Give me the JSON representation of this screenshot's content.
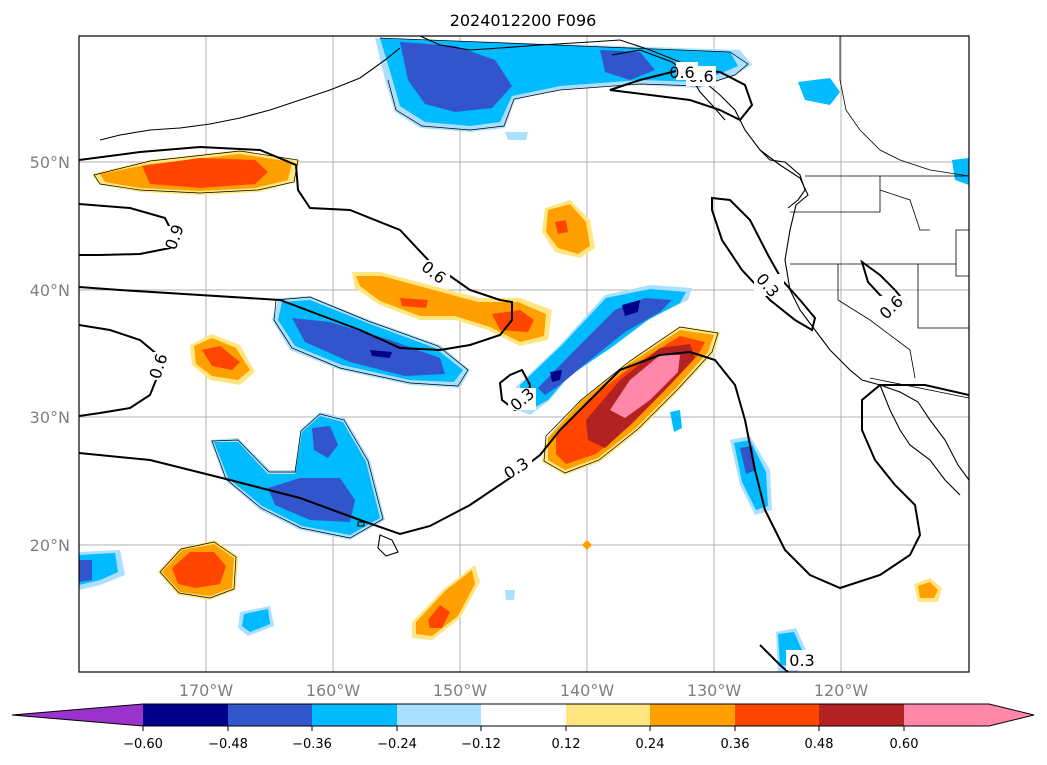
{
  "title": "2024012200 F096",
  "colors": {
    "neg": [
      "#9933cc",
      "#00008b",
      "#3355cc",
      "#00bbff",
      "#aadfff"
    ],
    "zero": "#ffffff",
    "pos": [
      "#ffe680",
      "#ffa000",
      "#ff4500",
      "#b22222",
      "#ff88aa"
    ]
  },
  "map": {
    "lon_labels": [
      "170°W",
      "160°W",
      "150°W",
      "140°W",
      "130°W",
      "120°W"
    ],
    "lat_labels": [
      "50°N",
      "40°N",
      "30°N",
      "20°N"
    ],
    "contour_labels": [
      "0.9",
      "0.6",
      "0.6",
      "0.3",
      "0.3",
      "0.6",
      "0.3",
      "0.6",
      "0.3",
      "0.6"
    ]
  },
  "colorbar": {
    "ticks": [
      "−0.60",
      "−0.48",
      "−0.36",
      "−0.24",
      "−0.12",
      "0.12",
      "0.24",
      "0.36",
      "0.48",
      "0.60"
    ]
  }
}
